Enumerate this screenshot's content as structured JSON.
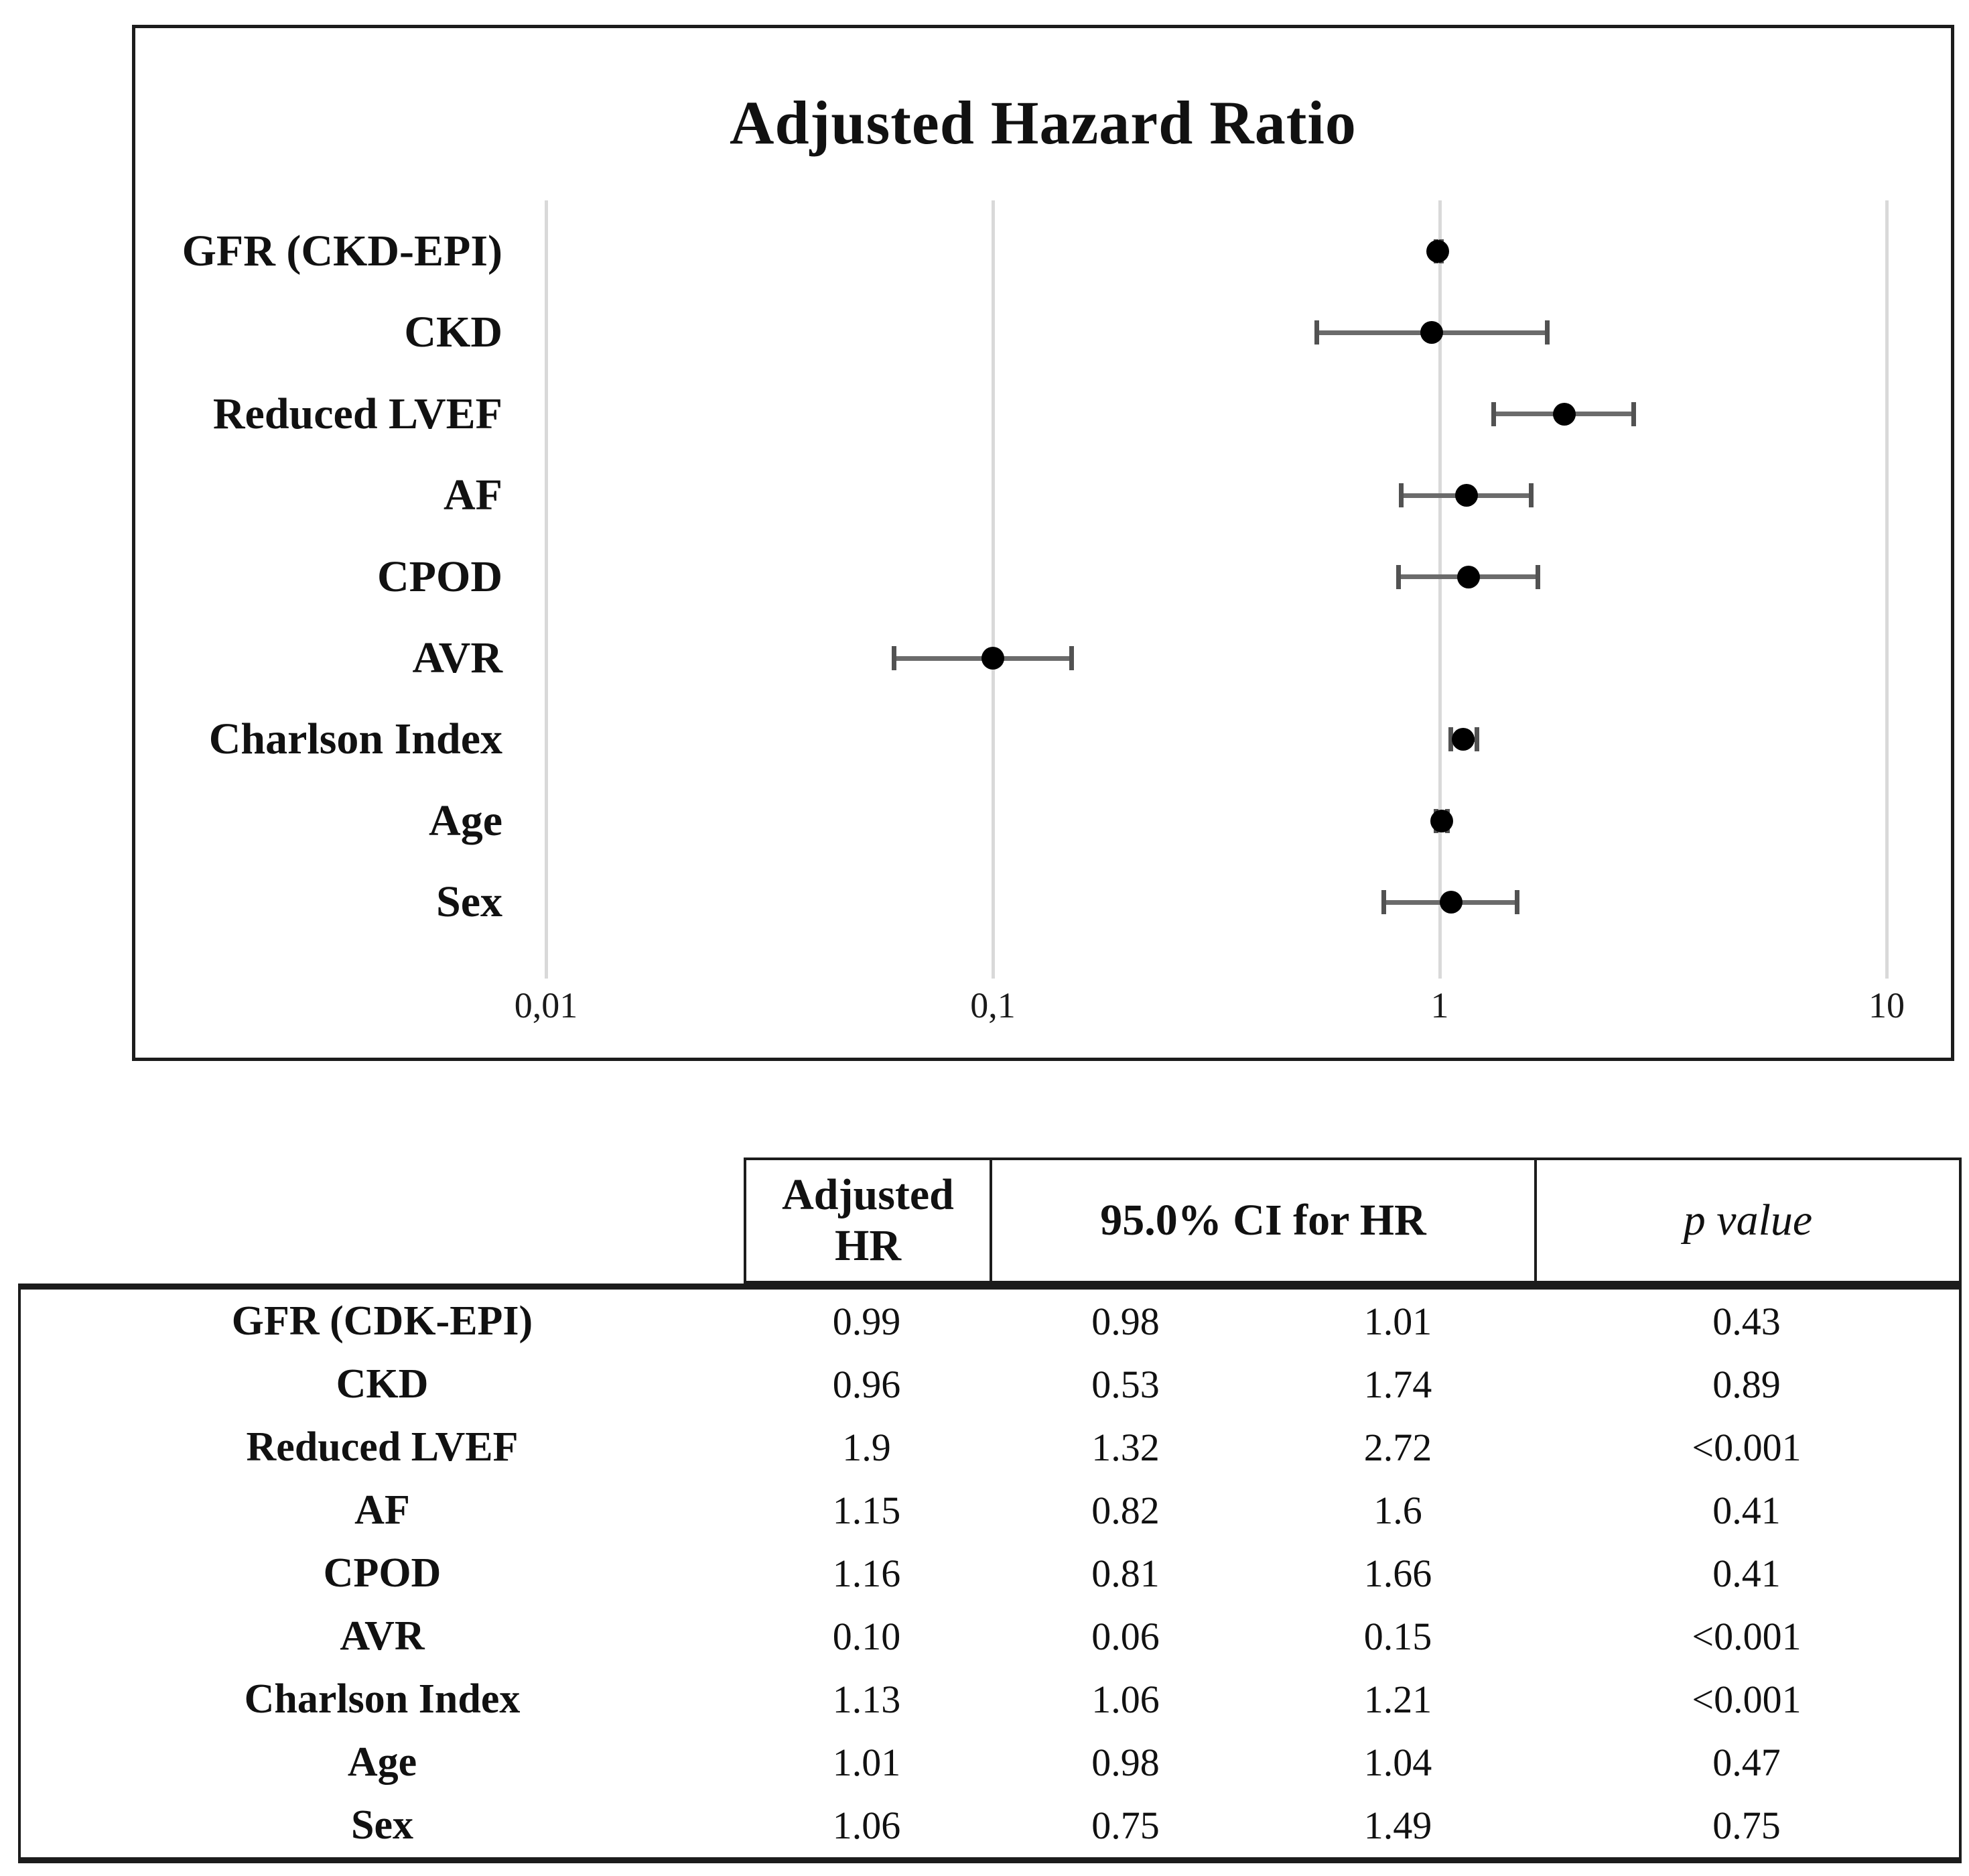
{
  "chart_data": {
    "type": "forest",
    "title": "Adjusted Hazard Ratio",
    "x_scale": "log10",
    "xlim": [
      0.01,
      10
    ],
    "grid": "vertical-ticks-only",
    "x_ticks": [
      {
        "label": "0,01",
        "value": 0.01
      },
      {
        "label": "0,1",
        "value": 0.1
      },
      {
        "label": "1",
        "value": 1
      },
      {
        "label": "10",
        "value": 10
      }
    ],
    "series": [
      {
        "label": "GFR (CKD-EPI)",
        "hr": 0.99,
        "ci_low": 0.98,
        "ci_high": 1.01
      },
      {
        "label": "CKD",
        "hr": 0.96,
        "ci_low": 0.53,
        "ci_high": 1.74
      },
      {
        "label": "Reduced LVEF",
        "hr": 1.9,
        "ci_low": 1.32,
        "ci_high": 2.72
      },
      {
        "label": "AF",
        "hr": 1.15,
        "ci_low": 0.82,
        "ci_high": 1.6
      },
      {
        "label": "CPOD",
        "hr": 1.16,
        "ci_low": 0.81,
        "ci_high": 1.66
      },
      {
        "label": "AVR",
        "hr": 0.1,
        "ci_low": 0.06,
        "ci_high": 0.15
      },
      {
        "label": "Charlson Index",
        "hr": 1.13,
        "ci_low": 1.06,
        "ci_high": 1.21
      },
      {
        "label": "Age",
        "hr": 1.01,
        "ci_low": 0.98,
        "ci_high": 1.04
      },
      {
        "label": "Sex",
        "hr": 1.06,
        "ci_low": 0.75,
        "ci_high": 1.49
      }
    ],
    "colors": {
      "point": "#000000",
      "whisker": "#6b6b6b",
      "whisker_cap": "#525252",
      "gridline": "#d9d9d9",
      "border": "#1c1c1c"
    }
  },
  "table": {
    "columns": [
      "Adjusted HR",
      "95.0% CI for HR",
      "p value"
    ],
    "rows": [
      {
        "label": "GFR (CDK-EPI)",
        "hr": "0.99",
        "ci_low": "0.98",
        "ci_high": "1.01",
        "p": "0.43"
      },
      {
        "label": "CKD",
        "hr": "0.96",
        "ci_low": "0.53",
        "ci_high": "1.74",
        "p": "0.89"
      },
      {
        "label": "Reduced LVEF",
        "hr": "1.9",
        "ci_low": "1.32",
        "ci_high": "2.72",
        "p": "<0.001"
      },
      {
        "label": "AF",
        "hr": "1.15",
        "ci_low": "0.82",
        "ci_high": "1.6",
        "p": "0.41"
      },
      {
        "label": "CPOD",
        "hr": "1.16",
        "ci_low": "0.81",
        "ci_high": "1.66",
        "p": "0.41"
      },
      {
        "label": "AVR",
        "hr": "0.10",
        "ci_low": "0.06",
        "ci_high": "0.15",
        "p": "<0.001"
      },
      {
        "label": "Charlson Index",
        "hr": "1.13",
        "ci_low": "1.06",
        "ci_high": "1.21",
        "p": "<0.001"
      },
      {
        "label": "Age",
        "hr": "1.01",
        "ci_low": "0.98",
        "ci_high": "1.04",
        "p": "0.47"
      },
      {
        "label": "Sex",
        "hr": "1.06",
        "ci_low": "0.75",
        "ci_high": "1.49",
        "p": "0.75"
      }
    ]
  }
}
